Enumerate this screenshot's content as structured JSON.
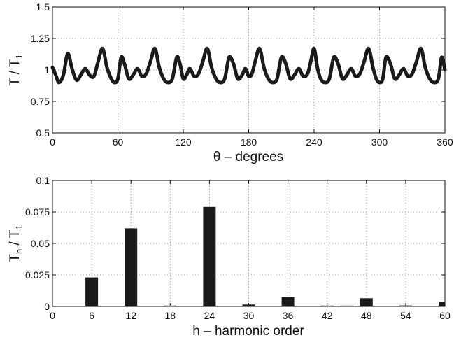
{
  "chart_data": [
    {
      "type": "line",
      "xlabel": "θ – degrees",
      "ylabel_main": "T / T",
      "ylabel_sub": "1",
      "xlim": [
        0,
        360
      ],
      "ylim": [
        0.5,
        1.5
      ],
      "xticks": [
        0,
        60,
        120,
        180,
        240,
        300,
        360
      ],
      "xtick_labels": [
        "0",
        "60",
        "120",
        "180",
        "240",
        "300",
        "360"
      ],
      "yticks": [
        0.5,
        0.75,
        1,
        1.25,
        1.5
      ],
      "ytick_labels": [
        "0.5",
        "0.75",
        "1",
        "1.25",
        "1.5"
      ],
      "grid": true,
      "series": [
        {
          "color": "#1a1a1a",
          "x": [
            0,
            3,
            6,
            10,
            14,
            18,
            22,
            26,
            30,
            34,
            38,
            42,
            46,
            50,
            54,
            57,
            60,
            63,
            66,
            70,
            74,
            78,
            82,
            86,
            90,
            94,
            98,
            102,
            106,
            110,
            114,
            117,
            120,
            123,
            126,
            130,
            134,
            138,
            142,
            146,
            150,
            154,
            158,
            162,
            166,
            170,
            174,
            177,
            180,
            183,
            186,
            190,
            194,
            198,
            202,
            206,
            210,
            214,
            218,
            222,
            226,
            230,
            234,
            237,
            240,
            243,
            246,
            250,
            254,
            258,
            262,
            266,
            270,
            274,
            278,
            282,
            286,
            290,
            294,
            297,
            300,
            303,
            306,
            310,
            314,
            318,
            322,
            326,
            330,
            334,
            338,
            342,
            346,
            350,
            354,
            357,
            360
          ],
          "y": [
            1.02,
            0.96,
            0.9,
            0.96,
            1.13,
            1.01,
            0.92,
            0.96,
            1.01,
            0.96,
            0.95,
            1.07,
            1.17,
            1.02,
            0.93,
            0.9,
            0.93,
            1.1,
            1.05,
            0.93,
            0.96,
            1.01,
            0.95,
            0.97,
            1.07,
            1.17,
            1.02,
            0.93,
            0.9,
            0.93,
            1.1,
            1.05,
            0.93,
            0.96,
            1.01,
            0.95,
            0.97,
            1.07,
            1.17,
            1.02,
            0.93,
            0.9,
            0.93,
            1.1,
            1.05,
            0.93,
            0.96,
            1.01,
            0.95,
            0.97,
            1.07,
            1.17,
            1.02,
            0.93,
            0.9,
            0.93,
            1.1,
            1.05,
            0.93,
            0.96,
            1.01,
            0.95,
            0.97,
            1.07,
            1.17,
            1.02,
            0.93,
            0.9,
            0.93,
            1.1,
            1.05,
            0.93,
            0.96,
            1.01,
            0.95,
            0.97,
            1.07,
            1.17,
            1.02,
            0.93,
            0.9,
            0.93,
            1.1,
            1.05,
            0.93,
            0.96,
            1.01,
            0.95,
            0.97,
            1.07,
            1.17,
            1.02,
            0.93,
            0.9,
            0.93,
            1.1,
            1.0
          ]
        }
      ]
    },
    {
      "type": "bar",
      "xlabel": "h – harmonic order",
      "ylabel_main": "T",
      "ylabel_sub1": "h",
      "ylabel_mid": " / T",
      "ylabel_sub2": "1",
      "xlim": [
        0,
        60
      ],
      "ylim": [
        0,
        0.1
      ],
      "xticks": [
        0,
        6,
        12,
        18,
        24,
        30,
        36,
        42,
        48,
        54,
        60
      ],
      "xtick_labels": [
        "0",
        "6",
        "12",
        "18",
        "24",
        "30",
        "36",
        "42",
        "48",
        "54",
        "60"
      ],
      "yticks": [
        0,
        0.025,
        0.05,
        0.075,
        0.1
      ],
      "ytick_labels": [
        "0",
        "0.025",
        "0.05",
        "0.075",
        "0.1"
      ],
      "grid": true,
      "bar_color": "#1a1a1a",
      "x": [
        6,
        12,
        18,
        24,
        30,
        36,
        42,
        45,
        48,
        54,
        60
      ],
      "values": [
        0.023,
        0.062,
        0.0005,
        0.079,
        0.0015,
        0.0075,
        0.0003,
        0.0003,
        0.0065,
        0.0008,
        0.0035
      ]
    }
  ]
}
